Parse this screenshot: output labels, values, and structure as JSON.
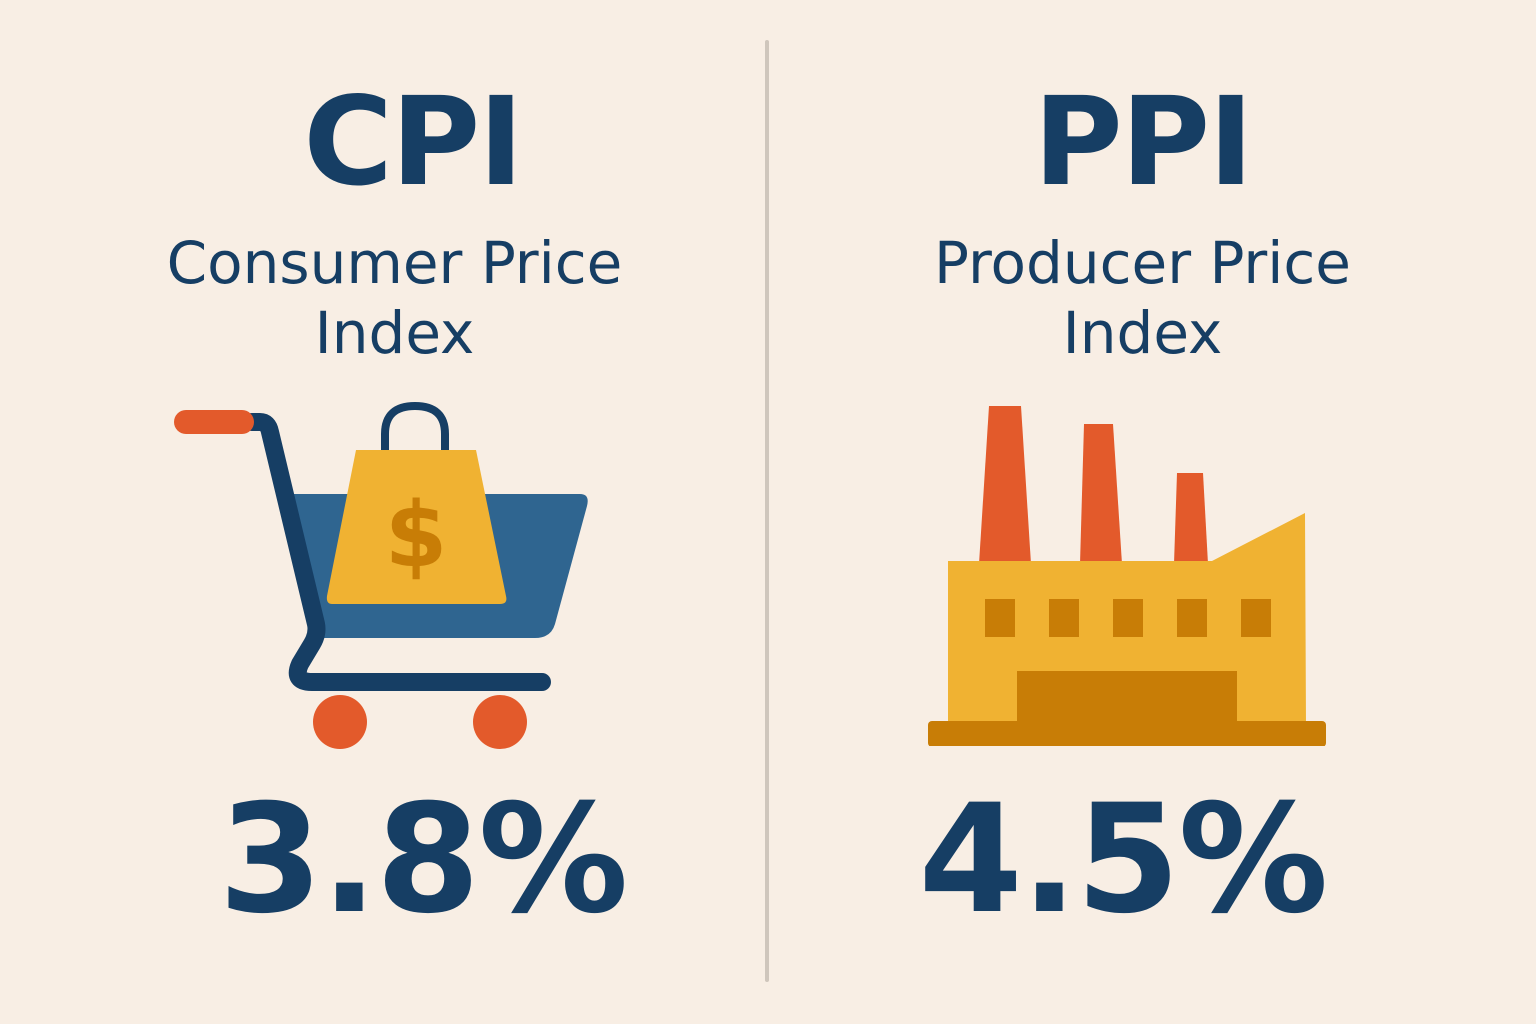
{
  "cpi": {
    "acronym": "CPI",
    "fullname_line1": "Consumer Price",
    "fullname_line2": "Index",
    "value": "3.8%",
    "icon": "shopping-cart-icon",
    "bag_symbol": "$"
  },
  "ppi": {
    "acronym": "PPI",
    "fullname_line1": "Producer Price",
    "fullname_line2": "Index",
    "value": "4.5%",
    "icon": "factory-icon"
  },
  "colors": {
    "background": "#f8eee4",
    "navy": "#163e64",
    "blue": "#2f6590",
    "orange": "#e35a2b",
    "yellow": "#f0b232",
    "dark_yellow": "#c87d06",
    "divider": "#cfc6bc"
  }
}
